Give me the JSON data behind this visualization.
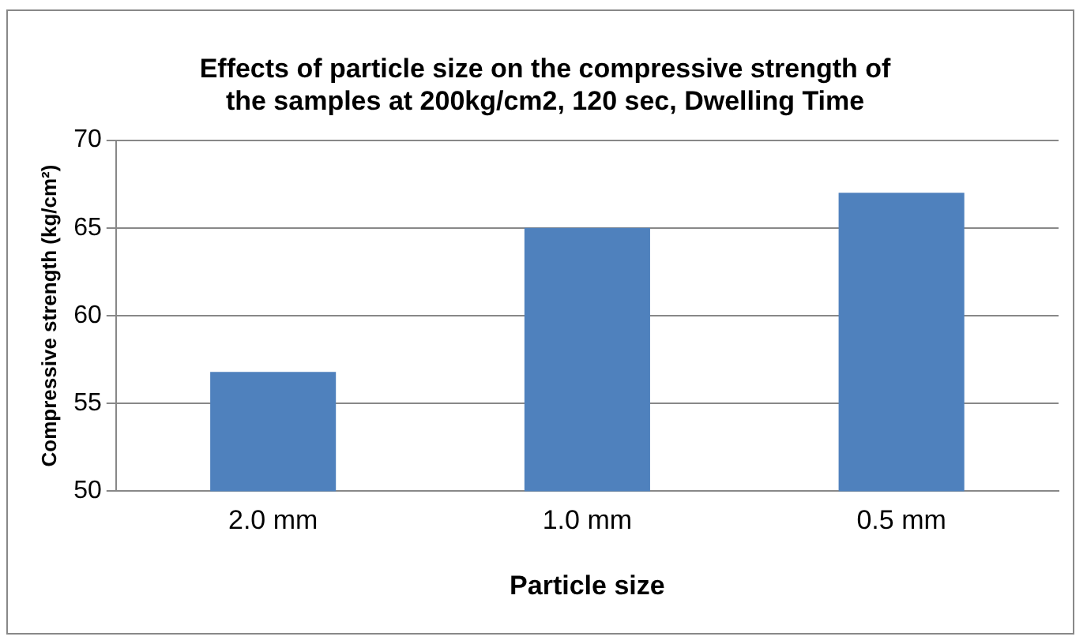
{
  "chart_data": {
    "type": "bar",
    "title": "Effects of particle size on the compressive strength of the samples at 200kg/cm2, 120 sec, Dwelling Time",
    "xlabel": "Particle size",
    "ylabel": "Compressive strength (kg/cm²)",
    "categories": [
      "2.0 mm",
      "1.0 mm",
      "0.5 mm"
    ],
    "values": [
      56.8,
      65,
      67
    ],
    "color": "#4f81bd",
    "ylim": [
      50,
      70
    ],
    "yticks": [
      50,
      55,
      60,
      65,
      70
    ],
    "grid": "y",
    "legend": false
  }
}
